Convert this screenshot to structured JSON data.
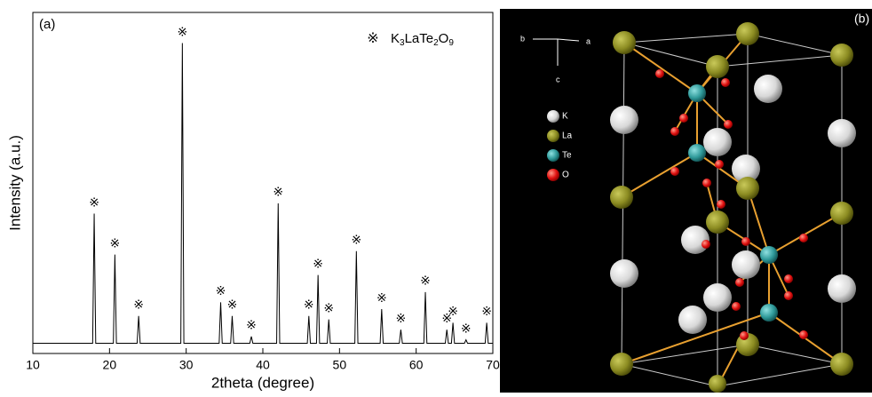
{
  "chart_data": {
    "type": "line",
    "panel_label": "(a)",
    "xlabel": "2theta (degree)",
    "ylabel": "Intensity (a.u.)",
    "peak_marker": "※",
    "x": [
      10,
      17.8,
      18.0,
      18.2,
      20.5,
      20.7,
      20.9,
      23.6,
      23.8,
      24.0,
      29.3,
      29.5,
      29.7,
      34.3,
      34.5,
      34.7,
      35.8,
      36.0,
      36.2,
      38.3,
      38.5,
      38.7,
      41.8,
      42.0,
      42.2,
      45.8,
      46.0,
      46.2,
      47.0,
      47.2,
      47.4,
      48.4,
      48.6,
      48.8,
      52.0,
      52.2,
      52.4,
      55.3,
      55.5,
      55.7,
      57.8,
      58.0,
      58.2,
      61.0,
      61.2,
      61.4,
      63.8,
      64.0,
      64.2,
      64.6,
      64.8,
      65.0,
      66.3,
      66.5,
      66.7,
      69.0,
      69.2,
      69.4,
      70
    ],
    "series": [
      {
        "name": "K3LaTe2O9",
        "color": "#000000",
        "values": [
          3,
          3,
          41,
          3,
          3,
          29,
          3,
          3,
          11,
          3,
          3,
          91,
          3,
          3,
          15,
          3,
          3,
          11,
          3,
          3,
          5,
          3,
          3,
          44,
          3,
          3,
          11,
          3,
          3,
          23,
          3,
          3,
          10,
          3,
          3,
          30,
          3,
          3,
          13,
          3,
          3,
          7,
          3,
          3,
          18,
          3,
          3,
          7,
          3,
          3,
          9,
          3,
          3,
          4,
          3,
          3,
          9,
          3,
          3
        ]
      }
    ],
    "xlim": [
      10,
      70
    ],
    "ylim": [
      0,
      100
    ],
    "xticks": [
      10,
      20,
      30,
      40,
      50,
      60,
      70
    ],
    "legend": "upper right"
  },
  "structure": {
    "panel_label": "(b)",
    "axes": [
      "b",
      "a",
      "c"
    ],
    "legend": [
      "K",
      "La",
      "Te",
      "O"
    ]
  }
}
